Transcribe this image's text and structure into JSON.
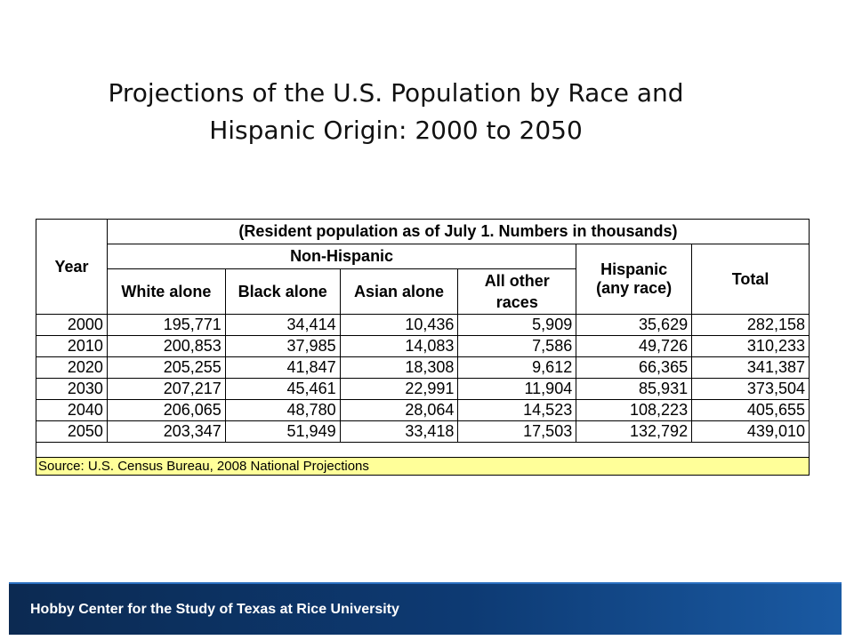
{
  "title": {
    "line1": "Projections of the U.S. Population by Race and",
    "line2": "Hispanic Origin: 2000 to 2050"
  },
  "table": {
    "header": {
      "year": "Year",
      "note": "(Resident population as of July 1. Numbers in thousands)",
      "non_hispanic": "Non-Hispanic",
      "white": "White alone",
      "black": "Black alone",
      "asian": "Asian alone",
      "other_line1": "All other",
      "other_line2": "races",
      "hispanic_line1": "Hispanic",
      "hispanic_line2": "(any race)",
      "total": "Total"
    },
    "rows": [
      [
        "2000",
        "195,771",
        "34,414",
        "10,436",
        "5,909",
        "35,629",
        "282,158"
      ],
      [
        "2010",
        "200,853",
        "37,985",
        "14,083",
        "7,586",
        "49,726",
        "310,233"
      ],
      [
        "2020",
        "205,255",
        "41,847",
        "18,308",
        "9,612",
        "66,365",
        "341,387"
      ],
      [
        "2030",
        "207,217",
        "45,461",
        "22,991",
        "11,904",
        "85,931",
        "373,504"
      ],
      [
        "2040",
        "206,065",
        "48,780",
        "28,064",
        "14,523",
        "108,223",
        "405,655"
      ],
      [
        "2050",
        "203,347",
        "51,949",
        "33,418",
        "17,503",
        "132,792",
        "439,010"
      ]
    ],
    "source": "Source: U.S. Census Bureau, 2008 National Projections"
  },
  "footer": {
    "text": "Hobby Center for the Study of Texas at Rice University"
  },
  "colors": {
    "source_bg": "#ffff99",
    "footer_bg": "#0d3a73"
  }
}
